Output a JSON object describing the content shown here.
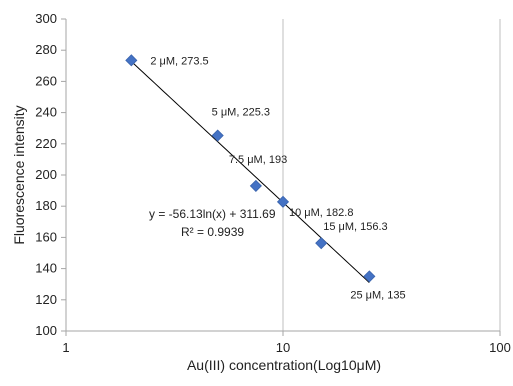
{
  "chart_data": {
    "type": "scatter",
    "title": "",
    "xlabel": "Au(III) concentration(Log10μM)",
    "ylabel": "Fluorescence intensity",
    "x_scale": "log",
    "xlim": [
      1,
      100
    ],
    "ylim": [
      100,
      300
    ],
    "x_ticks": [
      "1",
      "10",
      "100"
    ],
    "y_ticks": [
      "100",
      "120",
      "140",
      "160",
      "180",
      "200",
      "220",
      "240",
      "260",
      "280",
      "300"
    ],
    "grid": {
      "vertical": true,
      "horizontal": false
    },
    "series": [
      {
        "x": [
          2,
          5,
          7.5,
          10,
          15,
          25
        ],
        "y": [
          273.5,
          225.3,
          193,
          182.8,
          156.3,
          135
        ],
        "labels": [
          "2 μM, 273.5",
          "5 μM, 225.3",
          "7.5 μM, 193",
          "10 μM, 182.8",
          "15 μM, 156.3",
          "25 μM, 135"
        ],
        "marker": "diamond",
        "color": "#4472c4"
      }
    ],
    "trendline": {
      "type": "logarithmic",
      "a": -56.13,
      "b": 311.69,
      "x_range": [
        2,
        25
      ],
      "equation": "y = -56.13ln(x) + 311.69",
      "r_squared": "R² = 0.9939",
      "color": "#000000"
    },
    "axis_color": "#a6a6a6",
    "grid_color": "#bfbfbf"
  }
}
